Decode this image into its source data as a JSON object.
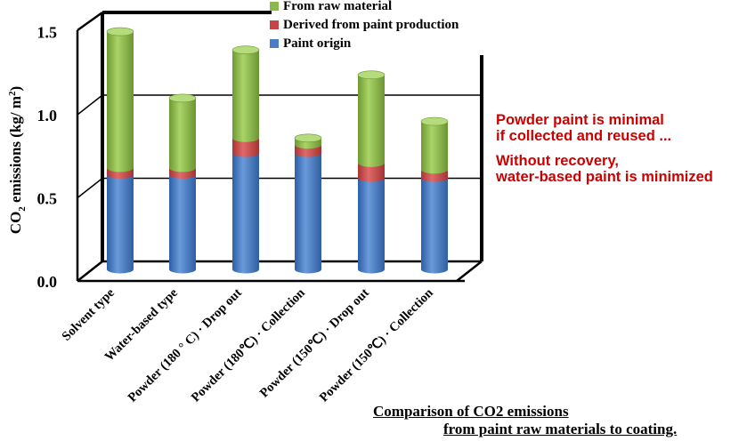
{
  "chart_data": {
    "type": "bar",
    "stacked": true,
    "style": "3d-cylinder",
    "categories": [
      "Solvent type",
      "Water-based type",
      "Powder (180 ° C) · Drop out",
      "Powder (180℃) · Collection",
      "Powder (150℃) · Drop out",
      "Powder (150℃) · Collection"
    ],
    "series": [
      {
        "name": "Paint origin",
        "color": "#4a7cc7",
        "values": [
          0.57,
          0.57,
          0.7,
          0.7,
          0.55,
          0.55
        ]
      },
      {
        "name": "Derived from paint production",
        "color": "#c84545",
        "values": [
          0.04,
          0.04,
          0.09,
          0.05,
          0.09,
          0.05
        ]
      },
      {
        "name": "From raw material",
        "color": "#8db84a",
        "values": [
          0.82,
          0.42,
          0.53,
          0.04,
          0.53,
          0.29
        ]
      }
    ],
    "ylabel": "CO2 emissions (kg/ m2)",
    "ylabel_parts": {
      "main": "CO",
      "sub": "2",
      "mid": " emissions (kg/ m",
      "sup": "2",
      "end": ")"
    },
    "y_ticks": [
      "0.0",
      "0.5",
      "1.0",
      "1.5"
    ],
    "ylim": [
      0,
      1.5
    ],
    "grid": true,
    "legend_position": "top-right"
  },
  "annotations": [
    "Powder paint is minimal",
    "if collected and reused ...",
    "Without recovery,",
    "water-based paint is minimized"
  ],
  "caption": {
    "line1": "Comparison of CO2 emissions",
    "line2": "from paint raw materials to coating."
  }
}
